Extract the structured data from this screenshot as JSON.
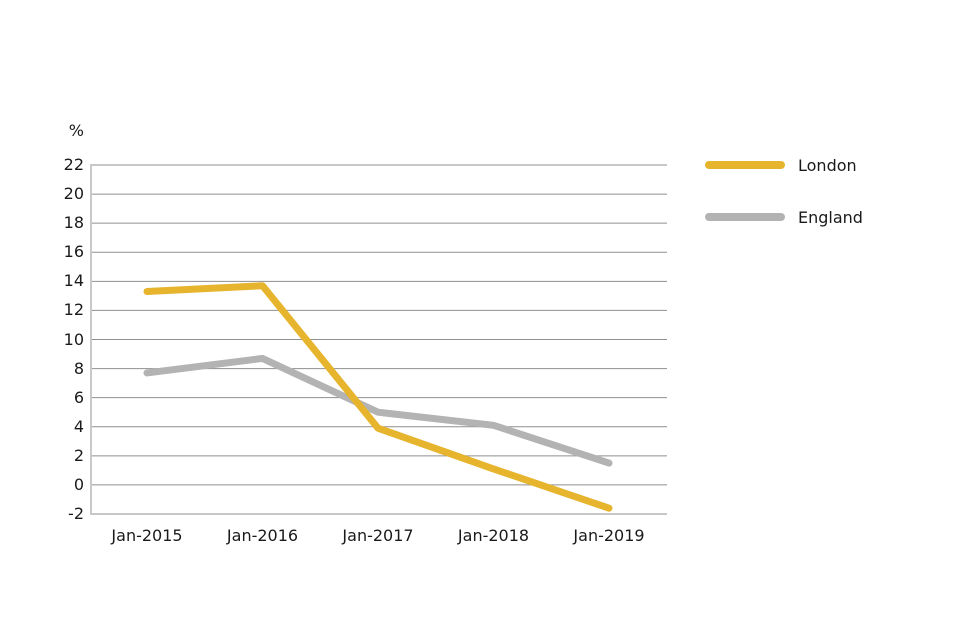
{
  "chart_data": {
    "type": "line",
    "title": "",
    "xlabel": "",
    "ylabel": "%",
    "categories": [
      "Jan-2015",
      "Jan-2016",
      "Jan-2017",
      "Jan-2018",
      "Jan-2019"
    ],
    "series": [
      {
        "name": "London",
        "color": "#E6B42D",
        "values": [
          13.3,
          13.7,
          3.9,
          1.1,
          -1.6
        ]
      },
      {
        "name": "England",
        "color": "#B3B3B3",
        "values": [
          7.7,
          8.7,
          5.0,
          4.1,
          1.5
        ]
      }
    ],
    "ylim": [
      -2,
      22
    ],
    "ytick_step": 2,
    "yticks": [
      22,
      20,
      18,
      16,
      14,
      12,
      10,
      8,
      6,
      4,
      2,
      0,
      -2
    ],
    "grid": "horizontal-only",
    "legend_position": "right",
    "line_width": 7,
    "colors": {
      "gridline": "#8F8F8F",
      "y_axis_line": "#C9C9C9",
      "text": "#1a1a1a",
      "background": "#ffffff"
    }
  }
}
